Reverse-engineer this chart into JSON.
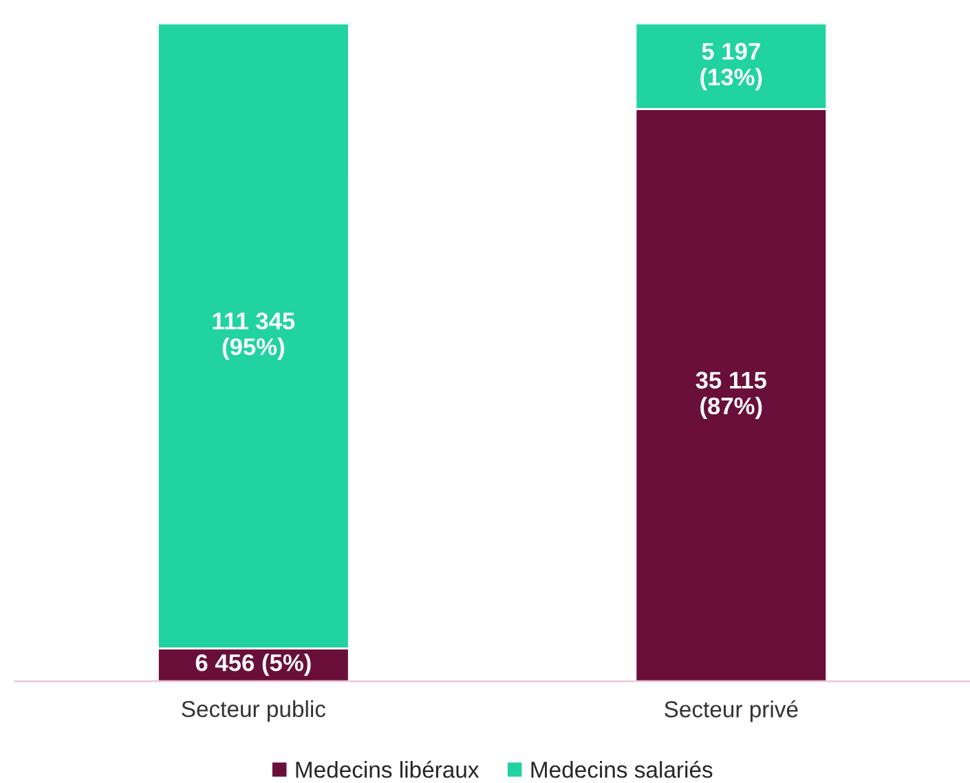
{
  "chart_data": {
    "type": "bar",
    "stacked": true,
    "categories": [
      "Secteur public",
      "Secteur privé"
    ],
    "series": [
      {
        "name": "Medecins libéraux",
        "color": "#690f3a",
        "values": [
          5,
          87
        ],
        "value_labels": [
          "6 456 (5%)",
          "35 115\n(87%)"
        ]
      },
      {
        "name": "Medecins salariés",
        "color": "#20d3a0",
        "values": [
          95,
          13
        ],
        "value_labels": [
          "111 345\n(95%)",
          "5 197\n(13%)"
        ]
      }
    ],
    "legend": "bottom"
  }
}
